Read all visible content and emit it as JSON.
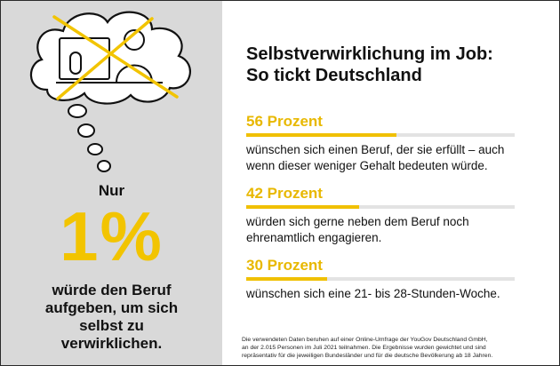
{
  "header": {
    "title_line1": "Selbstverwirklichung im Job:",
    "title_line2": "So tickt Deutschland"
  },
  "left_panel": {
    "nur": "Nur",
    "big_number": "1%",
    "text_lines": [
      "würde den Beruf",
      "aufgeben, um sich",
      "selbst zu",
      "verwirklichen."
    ],
    "illustration": "thought-bubble-with-crossed-out-office-worker",
    "background_color": "#d9d9d9",
    "accent_color": "#f2c400"
  },
  "stats": [
    {
      "label": "56 Prozent",
      "value": 56,
      "desc_lines": [
        "wünschen sich einen Beruf, der sie erfüllt – auch",
        "wenn dieser weniger Gehalt bedeuten würde."
      ]
    },
    {
      "label": "42 Prozent",
      "value": 42,
      "desc_lines": [
        "würden sich gerne neben dem Beruf noch",
        "ehrenamtlich engagieren."
      ]
    },
    {
      "label": "30 Prozent",
      "value": 30,
      "desc_lines": [
        "wünschen sich eine 21- bis 28-Stunden-Woche."
      ]
    }
  ],
  "footnote": {
    "lines": [
      "Die verwendeten Daten beruhen auf einer Online-Umfrage der YouGov Deutschland GmbH,",
      "an der 2.015 Personen im Juli 2021 teilnahmen. Die Ergebnisse wurden gewichtet und sind",
      "repräsentativ für die jeweiligen Bundesländer und für die deutsche Bevölkerung ab 18 Jahren."
    ]
  },
  "colors": {
    "accent": "#f0c000",
    "percent_text": "#e8b800",
    "bar_track": "#e3e3e3",
    "text": "#111111"
  }
}
